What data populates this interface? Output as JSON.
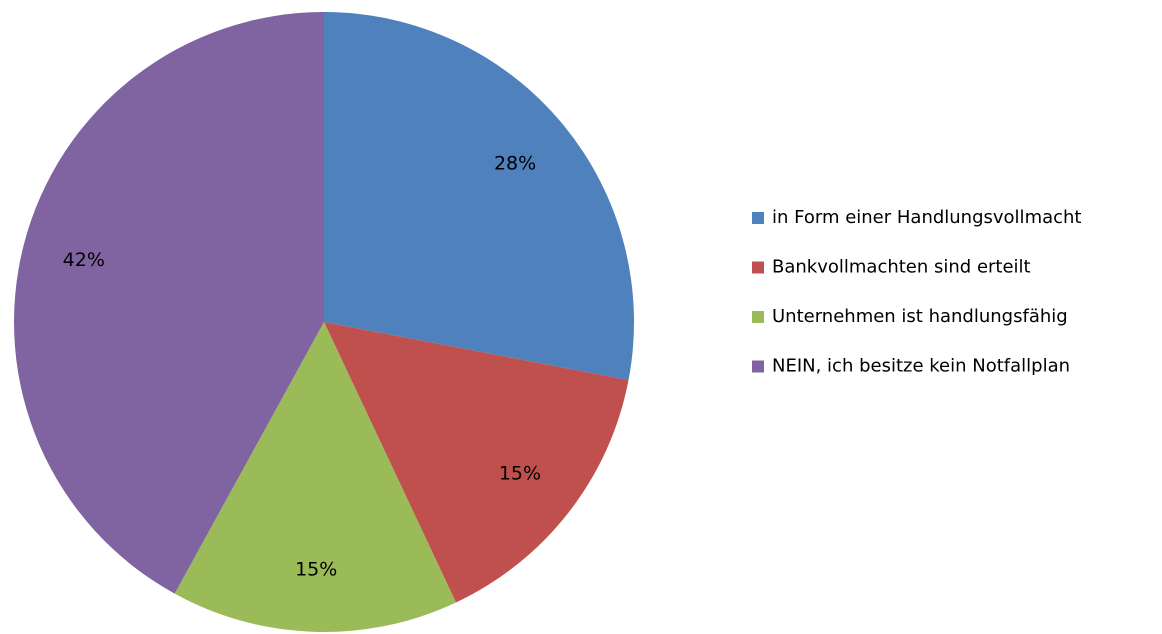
{
  "chart_data": {
    "type": "pie",
    "categories": [
      "in Form einer Handlungsvollmacht",
      "Bankvollmachten sind erteilt",
      "Unternehmen ist handlungsfähig",
      "NEIN, ich besitze kein Notfallplan"
    ],
    "values": [
      28,
      15,
      15,
      42
    ],
    "value_labels": [
      "28%",
      "15%",
      "15%",
      "42%"
    ],
    "colors": [
      "#4f81bd",
      "#c0504d",
      "#9bbb59",
      "#8064a2"
    ],
    "legend": "right"
  }
}
